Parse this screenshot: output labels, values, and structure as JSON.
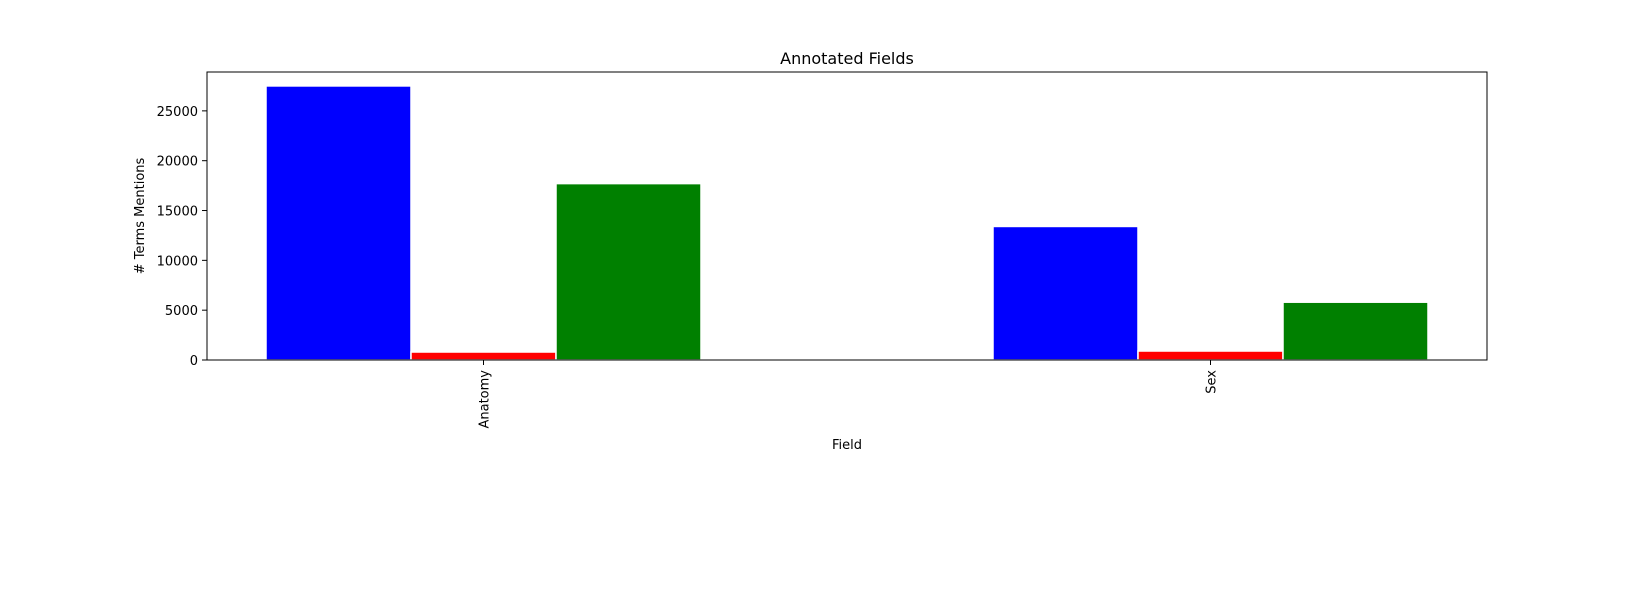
{
  "chart_data": {
    "type": "bar",
    "title": "Annotated Fields",
    "xlabel": "Field",
    "ylabel": "# Terms Mentions",
    "categories": [
      "Anatomy",
      "Sex"
    ],
    "series": [
      {
        "values": [
          27500,
          13400
        ],
        "color": "#0000ff"
      },
      {
        "values": [
          800,
          900
        ],
        "color": "#ff0000"
      },
      {
        "values": [
          17700,
          5800
        ],
        "color": "#008000"
      }
    ],
    "ylim": [
      0,
      28900
    ],
    "yticks": [
      0,
      5000,
      10000,
      15000,
      20000,
      25000
    ],
    "ytick_labels": [
      "0",
      "5000",
      "10000",
      "15000",
      "20000",
      "25000"
    ],
    "grid": false,
    "legend": "none"
  }
}
